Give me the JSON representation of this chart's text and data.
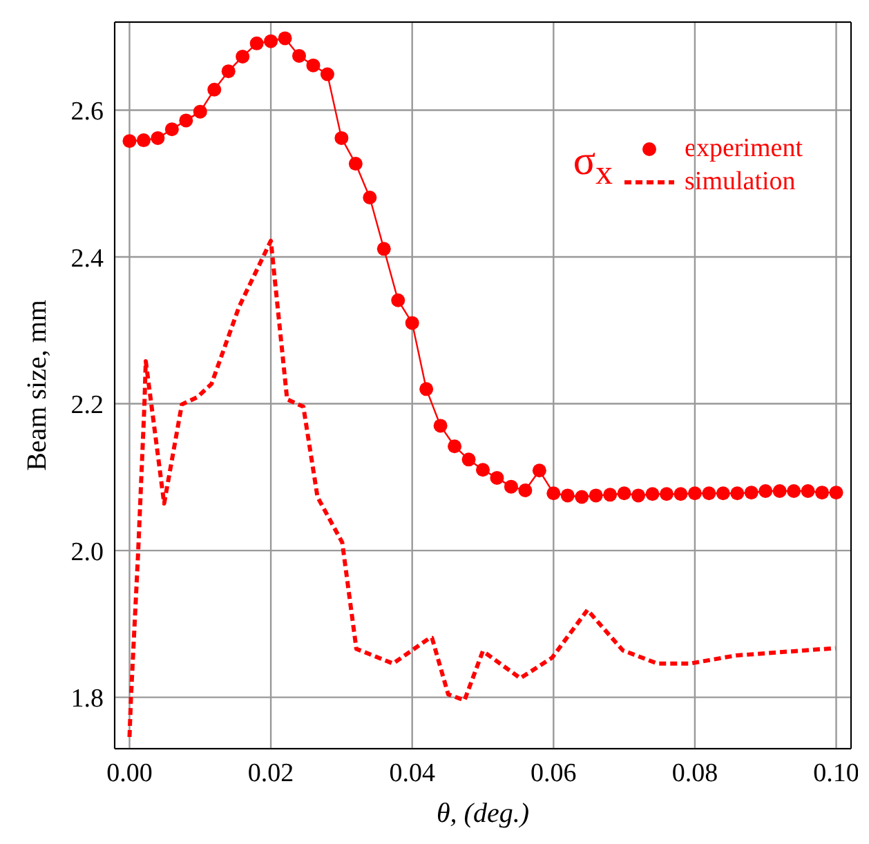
{
  "chart_data": {
    "type": "line",
    "xlabel": "θ, (deg.)",
    "ylabel": "Beam size, mm",
    "legend_title": "σ$_{x}$",
    "xlim": [
      -0.0021,
      0.1021
    ],
    "ylim": [
      1.73,
      2.72
    ],
    "xticks": [
      {
        "value": 0,
        "label": "0.00"
      },
      {
        "value": 0.02,
        "label": "0.02"
      },
      {
        "value": 0.04,
        "label": "0.04"
      },
      {
        "value": 0.06,
        "label": "0.06"
      },
      {
        "value": 0.08,
        "label": "0.08"
      },
      {
        "value": 0.1,
        "label": "0.10"
      }
    ],
    "yticks": [
      1.8,
      {
        "value": 2,
        "label": "2.0"
      },
      2.2,
      2.4,
      2.6
    ],
    "grid": true,
    "legend": "top right",
    "series": [
      {
        "name": "experiment",
        "color": "#ff0000",
        "marker": "circle",
        "line_style": "solid",
        "x": [
          0,
          0.002,
          0.004,
          0.006,
          0.008,
          0.01,
          0.012,
          0.014,
          0.016,
          0.018,
          0.02,
          0.022,
          0.024,
          0.026,
          0.028,
          0.03,
          0.032,
          0.034,
          0.036,
          0.038,
          0.04,
          0.042,
          0.044,
          0.046,
          0.048,
          0.05,
          0.052,
          0.054,
          0.056,
          0.058,
          0.06,
          0.062,
          0.064,
          0.066,
          0.068,
          0.07,
          0.072,
          0.074,
          0.076,
          0.078,
          0.08,
          0.082,
          0.084,
          0.086,
          0.088,
          0.09,
          0.092,
          0.094,
          0.096,
          0.098,
          0.1
        ],
        "values": [
          2.558,
          2.559,
          2.562,
          2.574,
          2.586,
          2.598,
          2.628,
          2.653,
          2.673,
          2.691,
          2.694,
          2.698,
          2.674,
          2.661,
          2.649,
          2.562,
          2.527,
          2.481,
          2.411,
          2.341,
          2.31,
          2.22,
          2.17,
          2.142,
          2.124,
          2.11,
          2.099,
          2.087,
          2.082,
          2.109,
          2.078,
          2.075,
          2.073,
          2.075,
          2.076,
          2.078,
          2.075,
          2.077,
          2.077,
          2.077,
          2.078,
          2.078,
          2.078,
          2.078,
          2.079,
          2.081,
          2.081,
          2.081,
          2.081,
          2.079,
          2.079
        ]
      },
      {
        "name": "simulation",
        "color": "#ff0000",
        "marker": "none",
        "line_style": "dashed",
        "x": [
          0,
          0.0002,
          0.0012,
          0.0021,
          0.0023,
          0.0049,
          0.0074,
          0.0096,
          0.0116,
          0.0155,
          0.02,
          0.0223,
          0.0246,
          0.0266,
          0.0301,
          0.0321,
          0.0373,
          0.0425,
          0.0428,
          0.0451,
          0.0474,
          0.05,
          0.0553,
          0.0598,
          0.0648,
          0.0698,
          0.0747,
          0.0793,
          0.0858,
          0.0999
        ],
        "values": [
          1.746,
          1.798,
          1.993,
          2.196,
          2.258,
          2.064,
          2.199,
          2.209,
          2.227,
          2.332,
          2.422,
          2.206,
          2.196,
          2.073,
          2.011,
          1.866,
          1.846,
          1.881,
          1.881,
          1.804,
          1.796,
          1.863,
          1.826,
          1.854,
          1.919,
          1.864,
          1.846,
          1.846,
          1.857,
          1.867
        ]
      }
    ]
  }
}
